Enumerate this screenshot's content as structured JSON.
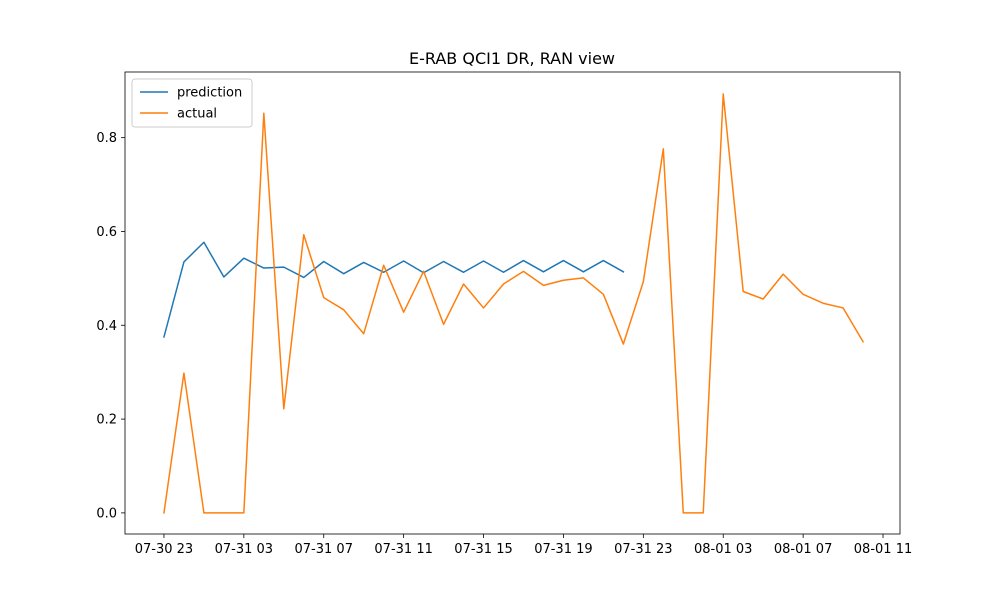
{
  "chart_data": {
    "type": "line",
    "title": "E-RAB QCI1 DR, RAN view",
    "xlabel": "",
    "ylabel": "",
    "x_start": "07-30 23",
    "x_step_hours": 1,
    "xlim_hours": [
      -1.95,
      36.85
    ],
    "ylim": [
      -0.045,
      0.94
    ],
    "x_ticks": [
      {
        "hour": 0,
        "label": "07-30 23"
      },
      {
        "hour": 4,
        "label": "07-31 03"
      },
      {
        "hour": 8,
        "label": "07-31 07"
      },
      {
        "hour": 12,
        "label": "07-31 11"
      },
      {
        "hour": 16,
        "label": "07-31 15"
      },
      {
        "hour": 20,
        "label": "07-31 19"
      },
      {
        "hour": 24,
        "label": "07-31 23"
      },
      {
        "hour": 28,
        "label": "08-01 03"
      },
      {
        "hour": 32,
        "label": "08-01 07"
      },
      {
        "hour": 36,
        "label": "08-01 11"
      }
    ],
    "y_ticks": [
      {
        "value": 0.0,
        "label": "0.0"
      },
      {
        "value": 0.2,
        "label": "0.2"
      },
      {
        "value": 0.4,
        "label": "0.4"
      },
      {
        "value": 0.6,
        "label": "0.6"
      },
      {
        "value": 0.8,
        "label": "0.8"
      }
    ],
    "grid": false,
    "legend": "upper-left",
    "series": [
      {
        "name": "prediction",
        "color": "#1f77b4",
        "start_hour": 0,
        "values": [
          0.375,
          0.535,
          0.577,
          0.503,
          0.543,
          0.522,
          0.524,
          0.502,
          0.536,
          0.51,
          0.534,
          0.513,
          0.537,
          0.512,
          0.536,
          0.513,
          0.537,
          0.513,
          0.538,
          0.514,
          0.538,
          0.514,
          0.538,
          0.514
        ]
      },
      {
        "name": "actual",
        "color": "#ff7f0e",
        "start_hour": 0,
        "values": [
          0.0,
          0.298,
          0.0,
          0.0,
          0.0,
          0.852,
          0.222,
          0.593,
          0.459,
          0.433,
          0.382,
          0.528,
          0.428,
          0.515,
          0.402,
          0.488,
          0.437,
          0.488,
          0.515,
          0.485,
          0.496,
          0.501,
          0.466,
          0.36,
          0.493,
          0.776,
          0.0,
          0.0,
          0.893,
          0.472,
          0.456,
          0.509,
          0.466,
          0.447,
          0.437,
          0.365
        ]
      }
    ]
  }
}
